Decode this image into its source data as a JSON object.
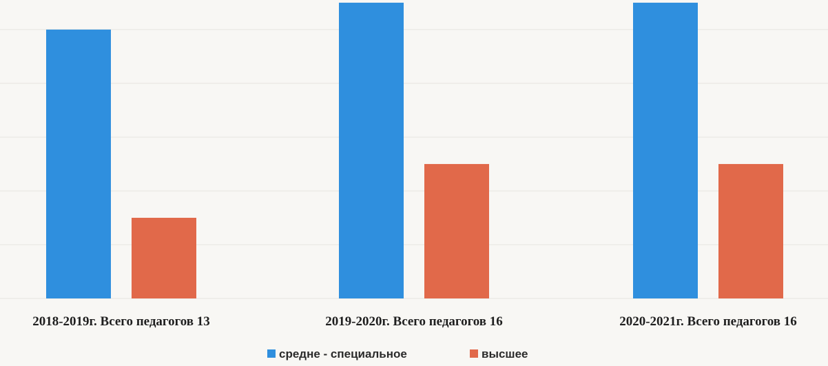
{
  "chart_data": {
    "type": "bar",
    "categories": [
      "2018-2019г. Всего педагогов 13",
      "2019-2020г. Всего педагогов 16",
      "2020-2021г. Всего педагогов 16"
    ],
    "series": [
      {
        "name": "средне - специальное",
        "values": [
          10,
          11,
          11
        ],
        "color": "#2f8fde"
      },
      {
        "name": "высшее",
        "values": [
          3,
          5,
          5
        ],
        "color": "#e1694a"
      }
    ],
    "ylim": [
      0,
      11.1
    ],
    "grid": true,
    "legend_position": "bottom-center"
  }
}
